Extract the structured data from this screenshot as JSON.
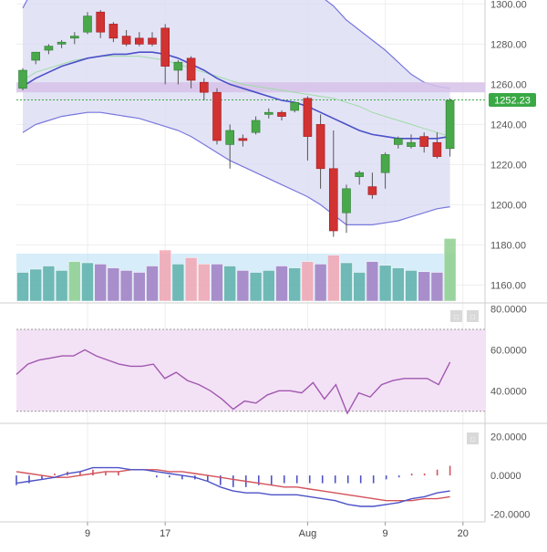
{
  "chart_data": [
    {
      "type": "candlestick",
      "y_ticks": [
        "1300.00",
        "1280.00",
        "1260.00",
        "1240.00",
        "1220.00",
        "1200.00",
        "1180.00",
        "1160.00"
      ],
      "y_range": [
        1152,
        1302
      ],
      "last_price_label": "1252.23",
      "last_price": 1252.23,
      "resistance_band": [
        1256,
        1261
      ],
      "x_tick_labels": [
        "9",
        "17",
        "Aug",
        "9",
        "20"
      ],
      "candles": [
        {
          "o": 1258,
          "h": 1268,
          "l": 1257,
          "c": 1267
        },
        {
          "o": 1272,
          "h": 1275,
          "l": 1270,
          "c": 1276
        },
        {
          "o": 1277,
          "h": 1280,
          "l": 1275,
          "c": 1279
        },
        {
          "o": 1280,
          "h": 1282,
          "l": 1278,
          "c": 1281
        },
        {
          "o": 1283,
          "h": 1286,
          "l": 1280,
          "c": 1284
        },
        {
          "o": 1286,
          "h": 1296,
          "l": 1285,
          "c": 1294
        },
        {
          "o": 1296,
          "h": 1297,
          "l": 1283,
          "c": 1286
        },
        {
          "o": 1290,
          "h": 1291,
          "l": 1281,
          "c": 1283
        },
        {
          "o": 1284,
          "h": 1287,
          "l": 1279,
          "c": 1280
        },
        {
          "o": 1283,
          "h": 1286,
          "l": 1279,
          "c": 1280
        },
        {
          "o": 1283,
          "h": 1286,
          "l": 1279,
          "c": 1280
        },
        {
          "o": 1288,
          "h": 1290,
          "l": 1260,
          "c": 1269
        },
        {
          "o": 1267,
          "h": 1272,
          "l": 1260,
          "c": 1271
        },
        {
          "o": 1273,
          "h": 1274,
          "l": 1258,
          "c": 1262
        },
        {
          "o": 1261,
          "h": 1263,
          "l": 1252,
          "c": 1256
        },
        {
          "o": 1256,
          "h": 1258,
          "l": 1230,
          "c": 1232
        },
        {
          "o": 1230,
          "h": 1240,
          "l": 1218,
          "c": 1237
        },
        {
          "o": 1233,
          "h": 1235,
          "l": 1229,
          "c": 1232
        },
        {
          "o": 1236,
          "h": 1244,
          "l": 1235,
          "c": 1242
        },
        {
          "o": 1245,
          "h": 1248,
          "l": 1243,
          "c": 1246
        },
        {
          "o": 1246,
          "h": 1247,
          "l": 1242,
          "c": 1244
        },
        {
          "o": 1247,
          "h": 1251,
          "l": 1246,
          "c": 1251
        },
        {
          "o": 1253,
          "h": 1254,
          "l": 1222,
          "c": 1234
        },
        {
          "o": 1240,
          "h": 1245,
          "l": 1208,
          "c": 1218
        },
        {
          "o": 1218,
          "h": 1237,
          "l": 1184,
          "c": 1187
        },
        {
          "o": 1196,
          "h": 1210,
          "l": 1186,
          "c": 1208
        },
        {
          "o": 1214,
          "h": 1217,
          "l": 1210,
          "c": 1216
        },
        {
          "o": 1209,
          "h": 1216,
          "l": 1203,
          "c": 1205
        },
        {
          "o": 1216,
          "h": 1226,
          "l": 1208,
          "c": 1225
        },
        {
          "o": 1230,
          "h": 1234,
          "l": 1228,
          "c": 1233
        },
        {
          "o": 1229,
          "h": 1235,
          "l": 1228,
          "c": 1231
        },
        {
          "o": 1234,
          "h": 1236,
          "l": 1226,
          "c": 1229
        },
        {
          "o": 1231,
          "h": 1236,
          "l": 1223,
          "c": 1224
        },
        {
          "o": 1228,
          "h": 1253,
          "l": 1224,
          "c": 1252
        }
      ],
      "x_tick_candle_index": [
        5,
        11,
        22,
        28,
        34
      ],
      "bollinger_upper": [
        1298,
        1310,
        1315,
        1320,
        1326,
        1331,
        1334,
        1335,
        1337,
        1338,
        1340,
        1342,
        1343,
        1344,
        1343,
        1341,
        1338,
        1334,
        1329,
        1324,
        1318,
        1313,
        1308,
        1304,
        1299,
        1292,
        1287,
        1282,
        1277,
        1271,
        1265,
        1261,
        1259,
        1258
      ],
      "bollinger_middle": [
        1259,
        1263,
        1266,
        1269,
        1271,
        1273,
        1274,
        1275,
        1275,
        1276,
        1276,
        1275,
        1273,
        1270,
        1267,
        1263,
        1260,
        1258,
        1256,
        1254,
        1252,
        1251,
        1249,
        1246,
        1243,
        1240,
        1237,
        1235,
        1234,
        1233,
        1233,
        1233,
        1233,
        1234
      ],
      "bollinger_lower": [
        1236,
        1240,
        1242,
        1244,
        1245,
        1246,
        1246,
        1245,
        1244,
        1243,
        1241,
        1239,
        1237,
        1234,
        1230,
        1226,
        1222,
        1219,
        1216,
        1213,
        1210,
        1207,
        1204,
        1200,
        1195,
        1190,
        1190,
        1190,
        1191,
        1192,
        1194,
        1196,
        1198,
        1199
      ],
      "ma_secondary": [
        1262,
        1266,
        1268,
        1270,
        1272,
        1273,
        1274,
        1274,
        1274,
        1274,
        1273,
        1272,
        1270,
        1268,
        1266,
        1264,
        1262,
        1260,
        1259,
        1258,
        1257,
        1256,
        1255,
        1254,
        1253,
        1251,
        1249,
        1246,
        1244,
        1242,
        1240,
        1238,
        1236,
        1234
      ],
      "volume": [
        45,
        50,
        55,
        48,
        62,
        60,
        58,
        52,
        48,
        45,
        55,
        80,
        58,
        68,
        58,
        58,
        55,
        48,
        45,
        48,
        55,
        52,
        62,
        58,
        72,
        60,
        45,
        62,
        56,
        52,
        48,
        46,
        45,
        98
      ],
      "volume_highlight": [
        false,
        false,
        false,
        false,
        true,
        false,
        false,
        false,
        false,
        false,
        false,
        true,
        false,
        true,
        true,
        false,
        false,
        false,
        false,
        false,
        false,
        false,
        true,
        false,
        true,
        false,
        false,
        false,
        false,
        false,
        false,
        false,
        false,
        true
      ]
    },
    {
      "type": "line",
      "y_ticks": [
        "80.0000",
        "60.0000",
        "40.0000"
      ],
      "y_range": [
        25,
        82
      ],
      "band": [
        30,
        70
      ],
      "values": [
        48,
        53,
        55,
        56,
        57,
        57,
        60,
        57,
        55,
        53,
        52,
        52,
        53,
        46,
        49,
        45,
        43,
        40,
        36,
        31,
        35,
        34,
        38,
        40,
        40,
        39,
        44,
        36,
        43,
        29,
        39,
        37,
        43,
        45,
        46,
        46,
        46,
        43,
        54
      ]
    },
    {
      "type": "line",
      "y_ticks": [
        "20.0000",
        "0.0000",
        "-20.0000"
      ],
      "y_range": [
        -24,
        26
      ],
      "macd": [
        -4,
        -3,
        -2,
        -1,
        1,
        2,
        4,
        4,
        4,
        3,
        3,
        2,
        1,
        0,
        -1,
        -3,
        -6,
        -8,
        -9,
        -9,
        -10,
        -10,
        -10,
        -11,
        -12,
        -13,
        -15,
        -16,
        -16,
        -15,
        -14,
        -12,
        -11,
        -9,
        -8
      ],
      "signal": [
        2,
        1,
        0,
        -1,
        -1,
        0,
        1,
        2,
        2,
        3,
        3,
        3,
        2,
        2,
        1,
        0,
        -1,
        -2,
        -3,
        -4,
        -5,
        -6,
        -6,
        -7,
        -8,
        -9,
        -10,
        -11,
        -12,
        -13,
        -13,
        -13,
        -12,
        -12,
        -11
      ],
      "histogram": [
        -5,
        -4,
        -2,
        1,
        2,
        2,
        3,
        2,
        2,
        0,
        0,
        -1,
        -1,
        -2,
        -2,
        -3,
        -5,
        -6,
        -6,
        -5,
        -5,
        -4,
        -4,
        -4,
        -4,
        -4,
        -4,
        -4,
        -4,
        -2,
        -1,
        1,
        1,
        3,
        5
      ]
    }
  ],
  "colors": {
    "up": "#49a84a",
    "down": "#d13232",
    "band_fill": "#dcdcf4",
    "band_line": "#7777dd",
    "middle_line": "#4a50c8",
    "ma_secondary": "#9fdca4",
    "resistance": "#d6c2e8",
    "price_badge": "#39a845",
    "rsi_line": "#a157b0",
    "rsi_band": "#f3e2f5",
    "macd_line": "#4c52c7",
    "signal_line": "#d3525a",
    "vol_teal": "#5dafa9",
    "vol_purple": "#a07ec2",
    "vol_pink": "#f2a4b0",
    "vol_green": "#8ecf8e",
    "vol_bg": "#b6dff6"
  },
  "controls": {
    "panel_button_1": "□",
    "panel_button_2": "□",
    "panel_button_3": "□"
  }
}
